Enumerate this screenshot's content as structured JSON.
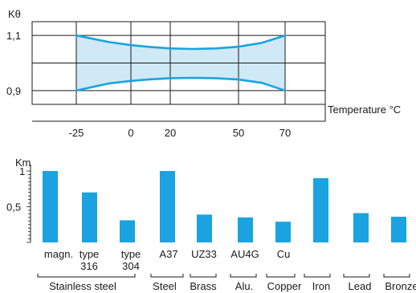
{
  "chart_data": [
    {
      "type": "area",
      "ylabel": "Kθ",
      "xlabel": "Temperature °C",
      "x_ticks": [
        -25,
        0,
        20,
        50,
        70
      ],
      "y_ticks": [
        0.9,
        1.0,
        1.1
      ],
      "y_tick_labels": [
        "0,9",
        "",
        "1,1"
      ],
      "xlim": [
        -25,
        70
      ],
      "ylim": [
        0.85,
        1.15
      ],
      "grid": true,
      "series": [
        {
          "x": [
            -25,
            -10,
            0,
            10,
            20,
            30,
            40,
            50,
            60,
            70
          ],
          "values": [
            1.1,
            1.076,
            1.065,
            1.058,
            1.053,
            1.051,
            1.053,
            1.059,
            1.073,
            1.1
          ]
        },
        {
          "x": [
            -25,
            -10,
            0,
            10,
            20,
            30,
            40,
            50,
            60,
            70
          ],
          "values": [
            0.9,
            0.926,
            0.935,
            0.941,
            0.945,
            0.946,
            0.945,
            0.94,
            0.928,
            0.9
          ]
        }
      ],
      "colors": {
        "line": "#1aa3e0",
        "fill": "#cfe9f6",
        "grid": "#1a1a1a"
      }
    },
    {
      "type": "bar",
      "ylabel": "Km",
      "y_ticks": [
        0.5,
        1
      ],
      "y_tick_labels": [
        "0,5",
        "1"
      ],
      "ylim": [
        0,
        1.1
      ],
      "categories": [
        [
          "magn."
        ],
        [
          "type",
          "316"
        ],
        [
          "type",
          "304"
        ],
        [
          "A37"
        ],
        [
          "UZ33"
        ],
        [
          "AU4G"
        ],
        [
          "Cu"
        ],
        [
          ""
        ],
        [
          ""
        ],
        [
          ""
        ]
      ],
      "values": [
        1.0,
        0.7,
        0.31,
        1.0,
        0.39,
        0.35,
        0.29,
        0.9,
        0.41,
        0.36
      ],
      "groups": [
        {
          "label": "Stainless steel",
          "from": 0,
          "to": 2
        },
        {
          "label": "Steel",
          "from": 3,
          "to": 3
        },
        {
          "label": "Brass",
          "from": 4,
          "to": 4
        },
        {
          "label": "Alu.",
          "from": 5,
          "to": 5
        },
        {
          "label": "Copper",
          "from": 6,
          "to": 6
        },
        {
          "label": "Iron",
          "from": 7,
          "to": 7
        },
        {
          "label": "Lead",
          "from": 8,
          "to": 8
        },
        {
          "label": "Bronze",
          "from": 9,
          "to": 9
        }
      ],
      "colors": {
        "bar": "#1aa3e0",
        "axis": "#1a1a1a"
      }
    }
  ]
}
